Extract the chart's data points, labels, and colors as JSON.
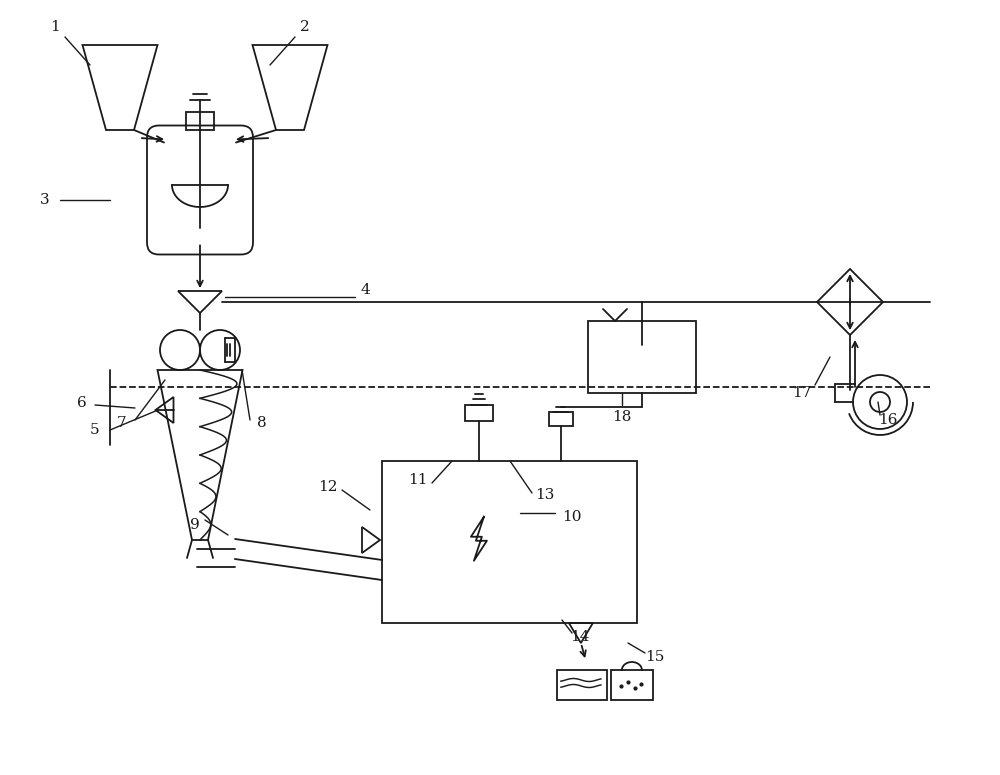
{
  "bg_color": "#ffffff",
  "line_color": "#1a1a1a",
  "figsize": [
    10,
    7.75
  ],
  "dpi": 100
}
